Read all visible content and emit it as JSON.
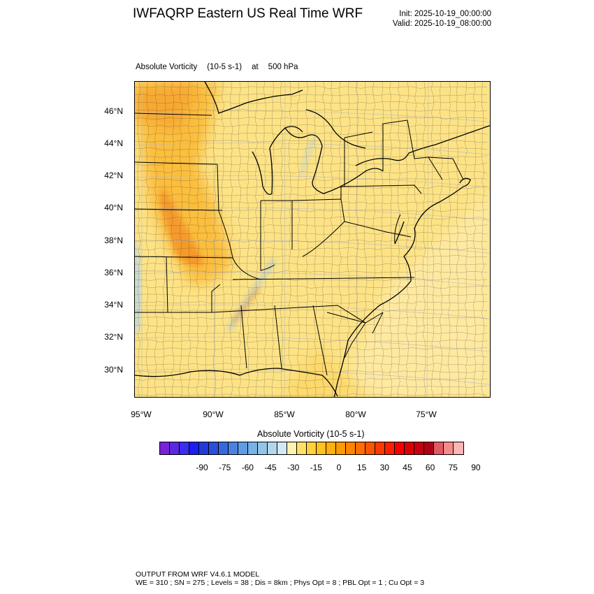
{
  "header": {
    "title": "IWFAQRP Eastern US Real Time WRF",
    "init": "Init: 2025-10-19_00:00:00",
    "valid": "Valid: 2025-10-19_08:00:00"
  },
  "field": {
    "name": "Absolute Vorticity",
    "units": "(10-5 s-1)",
    "at": "at",
    "level": "500 hPa"
  },
  "map": {
    "lat_labels": [
      "46°N",
      "44°N",
      "42°N",
      "40°N",
      "38°N",
      "36°N",
      "34°N",
      "32°N",
      "30°N"
    ],
    "lon_labels": [
      "95°W",
      "90°W",
      "85°W",
      "80°W",
      "75°W"
    ],
    "background_color": "#fde386"
  },
  "colorbar": {
    "title": "Absolute Vorticity  (10-5 s-1)",
    "tick_labels": [
      "-90",
      "-75",
      "-60",
      "-45",
      "-30",
      "-15",
      "0",
      "15",
      "30",
      "45",
      "60",
      "75",
      "90"
    ],
    "colors": [
      "#7a22d6",
      "#5a28e0",
      "#3d2df0",
      "#1a1ef5",
      "#1f3bdc",
      "#2a4fd8",
      "#3a67de",
      "#4b82e0",
      "#5f9ce4",
      "#78b2e6",
      "#93c5e8",
      "#b3d6ec",
      "#d3e8f2",
      "#fff2b0",
      "#ffe066",
      "#ffd23a",
      "#ffc21e",
      "#ffb00a",
      "#ff9a00",
      "#ff8400",
      "#ff6e00",
      "#ff5500",
      "#ff3a00",
      "#ff1e00",
      "#f50000",
      "#dd0000",
      "#c60010",
      "#b00018",
      "#e05a64",
      "#f58c8c",
      "#ffb5b5"
    ]
  },
  "footer": {
    "line1": "OUTPUT FROM WRF V4.6.1 MODEL",
    "line2": "WE = 310 ; SN = 275 ; Levels = 38 ; Dis = 8km ; Phys Opt = 8 ; PBL Opt = 1 ; Cu Opt = 3"
  }
}
